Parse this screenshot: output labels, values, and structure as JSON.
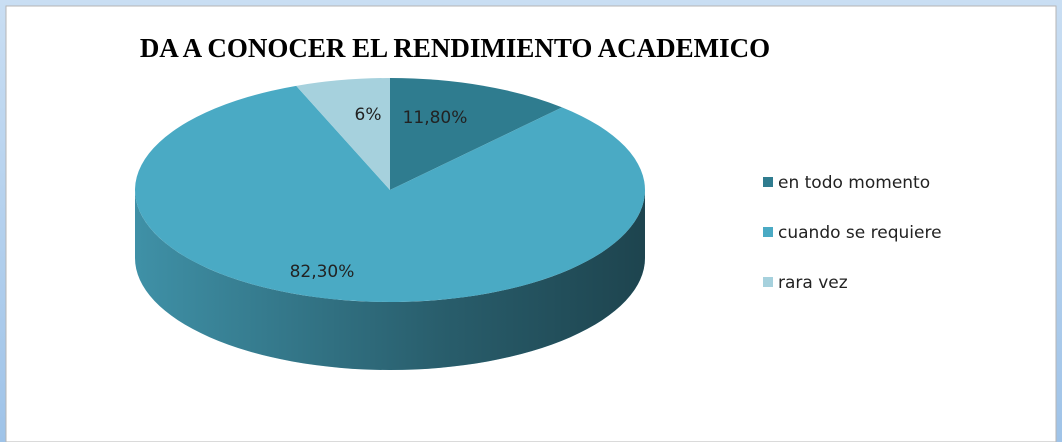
{
  "chart_data": {
    "type": "pie",
    "title": "DA A CONOCER EL RENDIMIENTO ACADEMICO",
    "categories": [
      "en todo momento",
      "cuando se requiere",
      "rara vez"
    ],
    "values": [
      11.8,
      82.3,
      6
    ],
    "value_labels": [
      "11,80%",
      "82,30%",
      "6%"
    ],
    "colors": [
      "#2f7c8f",
      "#4aaac4",
      "#a6d1dd"
    ],
    "legend": "right"
  }
}
